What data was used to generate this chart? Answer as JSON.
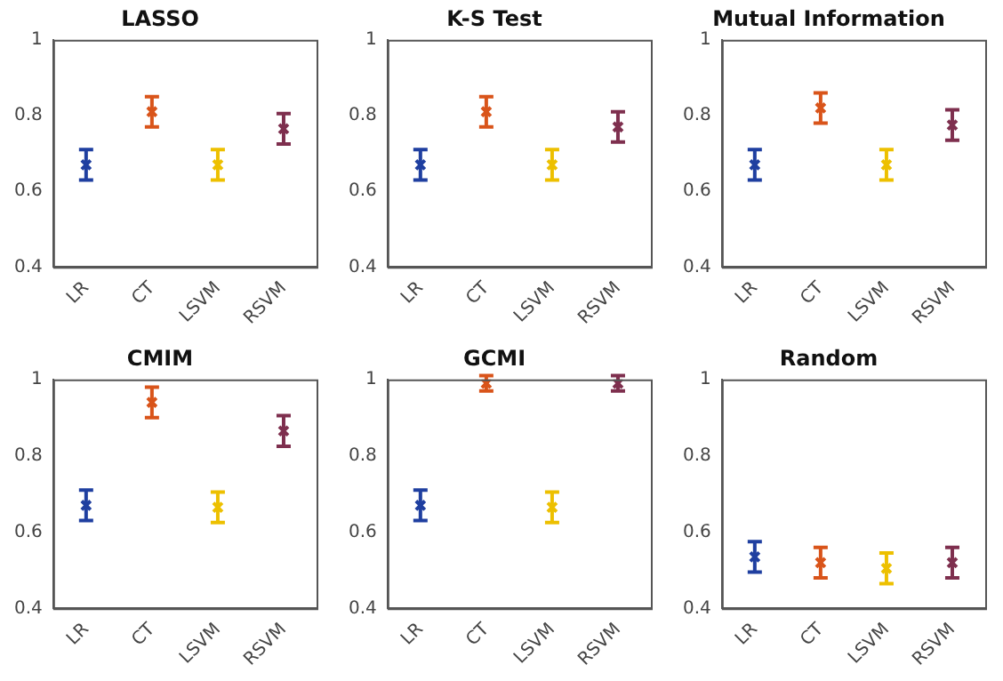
{
  "chart_data": [
    {
      "type": "scatter",
      "title": "LASSO",
      "categories": [
        "LR",
        "CT",
        "LSVM",
        "RSVM"
      ],
      "values": [
        0.67,
        0.81,
        0.67,
        0.765
      ],
      "errors": [
        0.04,
        0.04,
        0.04,
        0.04
      ],
      "colors": [
        "#1f3fa0",
        "#d9541a",
        "#edc000",
        "#7e2f4e"
      ],
      "ylim": [
        0.4,
        1
      ],
      "yticks": [
        0.4,
        0.6,
        0.8,
        1
      ],
      "marker": "cross"
    },
    {
      "type": "scatter",
      "title": "K-S Test",
      "categories": [
        "LR",
        "CT",
        "LSVM",
        "RSVM"
      ],
      "values": [
        0.67,
        0.81,
        0.67,
        0.77
      ],
      "errors": [
        0.04,
        0.04,
        0.04,
        0.04
      ],
      "colors": [
        "#1f3fa0",
        "#d9541a",
        "#edc000",
        "#7e2f4e"
      ],
      "ylim": [
        0.4,
        1
      ],
      "yticks": [
        0.4,
        0.6,
        0.8,
        1
      ],
      "marker": "cross"
    },
    {
      "type": "scatter",
      "title": "Mutual Information",
      "categories": [
        "LR",
        "CT",
        "LSVM",
        "RSVM"
      ],
      "values": [
        0.67,
        0.82,
        0.67,
        0.775
      ],
      "errors": [
        0.04,
        0.04,
        0.04,
        0.04
      ],
      "colors": [
        "#1f3fa0",
        "#d9541a",
        "#edc000",
        "#7e2f4e"
      ],
      "ylim": [
        0.4,
        1
      ],
      "yticks": [
        0.4,
        0.6,
        0.8,
        1
      ],
      "marker": "cross"
    },
    {
      "type": "scatter",
      "title": "CMIM",
      "categories": [
        "LR",
        "CT",
        "LSVM",
        "RSVM"
      ],
      "values": [
        0.67,
        0.94,
        0.665,
        0.865
      ],
      "errors": [
        0.04,
        0.04,
        0.04,
        0.04
      ],
      "colors": [
        "#1f3fa0",
        "#d9541a",
        "#edc000",
        "#7e2f4e"
      ],
      "ylim": [
        0.4,
        1
      ],
      "yticks": [
        0.4,
        0.6,
        0.8,
        1
      ],
      "marker": "cross"
    },
    {
      "type": "scatter",
      "title": "GCMI",
      "categories": [
        "LR",
        "CT",
        "LSVM",
        "RSVM"
      ],
      "values": [
        0.67,
        0.99,
        0.665,
        0.99
      ],
      "errors": [
        0.04,
        0.02,
        0.04,
        0.02
      ],
      "colors": [
        "#1f3fa0",
        "#d9541a",
        "#edc000",
        "#7e2f4e"
      ],
      "ylim": [
        0.4,
        1
      ],
      "yticks": [
        0.4,
        0.6,
        0.8,
        1
      ],
      "marker": "cross"
    },
    {
      "type": "scatter",
      "title": "Random",
      "categories": [
        "LR",
        "CT",
        "LSVM",
        "RSVM"
      ],
      "values": [
        0.535,
        0.52,
        0.505,
        0.52
      ],
      "errors": [
        0.04,
        0.04,
        0.04,
        0.04
      ],
      "colors": [
        "#1f3fa0",
        "#d9541a",
        "#edc000",
        "#7e2f4e"
      ],
      "ylim": [
        0.4,
        1
      ],
      "yticks": [
        0.4,
        0.6,
        0.8,
        1
      ],
      "marker": "cross"
    }
  ]
}
